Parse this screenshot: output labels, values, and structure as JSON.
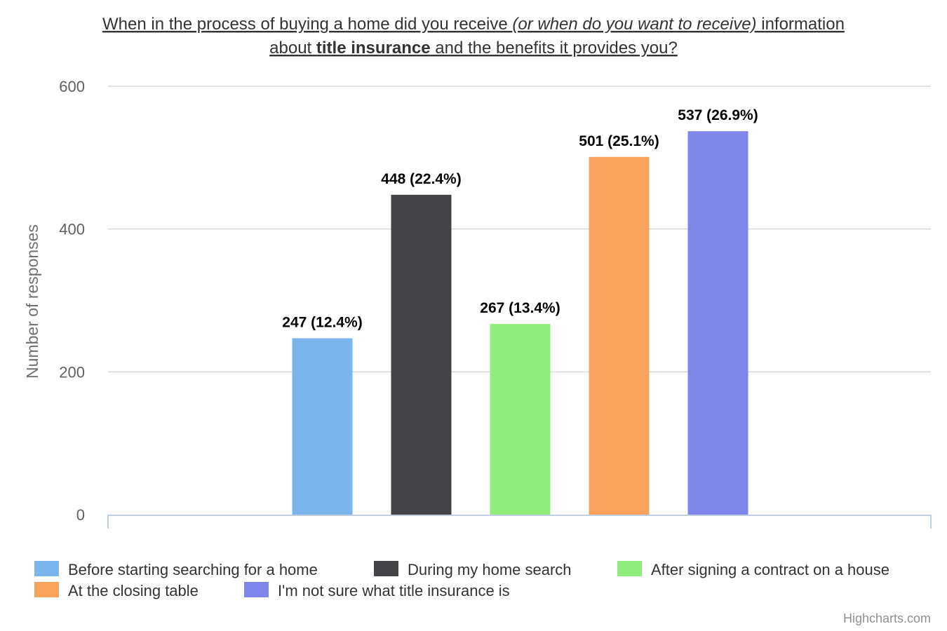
{
  "chart_data": {
    "type": "bar",
    "title_parts": [
      [
        "When in the process of buying a home did you receive ",
        "(or when do you want to receive)",
        " information"
      ],
      [
        "about ",
        "title insurance",
        " and the benefits it provides you?"
      ]
    ],
    "ylabel": "Number of responses",
    "ylim": [
      0,
      600
    ],
    "yticks": [
      0,
      200,
      400,
      600
    ],
    "grid": true,
    "legend_position": "bottom-left",
    "series": [
      {
        "name": "Before starting searching for a home",
        "value": 247,
        "label": "247 (12.4%)",
        "color": "#7cb5ec"
      },
      {
        "name": "During my home search",
        "value": 448,
        "label": "448 (22.4%)",
        "color": "#434348"
      },
      {
        "name": "After signing a contract on a house",
        "value": 267,
        "label": "267 (13.4%)",
        "color": "#90ed7d"
      },
      {
        "name": "At the closing table",
        "value": 501,
        "label": "501 (25.1%)",
        "color": "#f7a35c"
      },
      {
        "name": "I'm not sure what title insurance is",
        "value": 537,
        "label": "537 (26.9%)",
        "color": "#8085e9"
      }
    ]
  },
  "credit": "Highcharts.com"
}
